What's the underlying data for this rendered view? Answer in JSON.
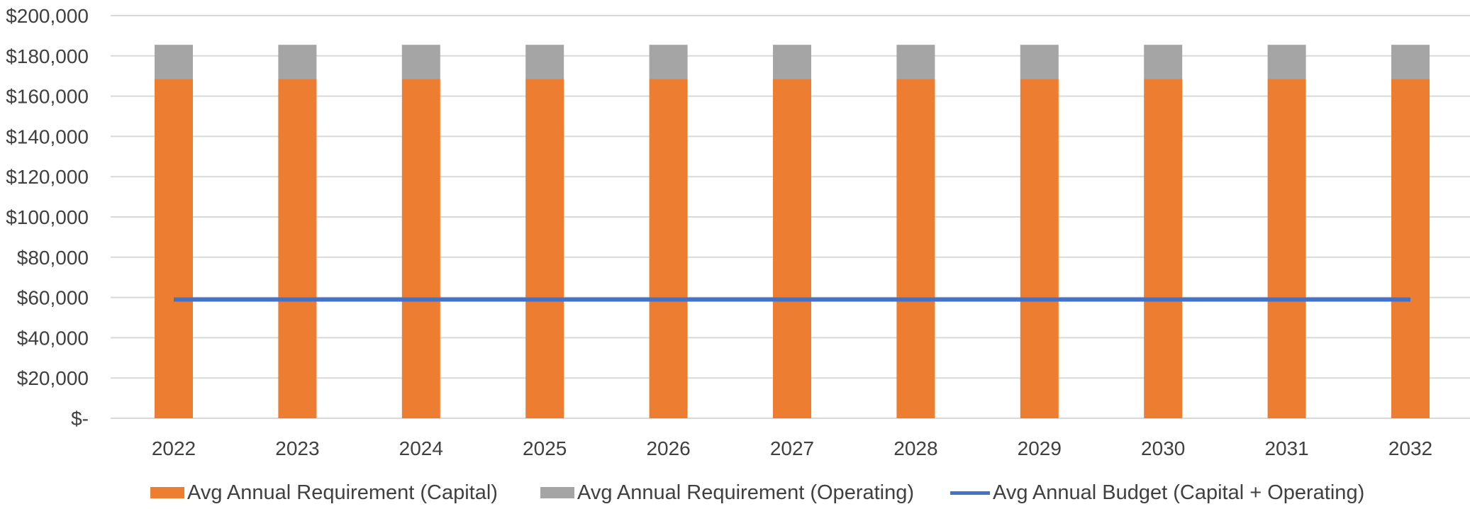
{
  "chart_data": {
    "type": "bar",
    "stacked": true,
    "categories": [
      "2022",
      "2023",
      "2024",
      "2025",
      "2026",
      "2027",
      "2028",
      "2029",
      "2030",
      "2031",
      "2032"
    ],
    "series": [
      {
        "name": "Avg Annual Requirement (Capital)",
        "type": "bar",
        "color": "#ED7D31",
        "values": [
          168500,
          168500,
          168500,
          168500,
          168500,
          168500,
          168500,
          168500,
          168500,
          168500,
          168500
        ]
      },
      {
        "name": "Avg Annual Requirement (Operating)",
        "type": "bar",
        "color": "#A5A5A5",
        "values": [
          17000,
          17000,
          17000,
          17000,
          17000,
          17000,
          17000,
          17000,
          17000,
          17000,
          17000
        ]
      },
      {
        "name": "Avg Annual Budget (Capital + Operating)",
        "type": "line",
        "color": "#4472C4",
        "values": [
          59000,
          59000,
          59000,
          59000,
          59000,
          59000,
          59000,
          59000,
          59000,
          59000,
          59000
        ]
      }
    ],
    "ylim": [
      0,
      200000
    ],
    "yticks": [
      0,
      20000,
      40000,
      60000,
      80000,
      100000,
      120000,
      140000,
      160000,
      180000,
      200000
    ],
    "ytick_labels": [
      "$-",
      "$20,000",
      "$40,000",
      "$60,000",
      "$80,000",
      "$100,000",
      "$120,000",
      "$140,000",
      "$160,000",
      "$180,000",
      "$200,000"
    ],
    "grid": true,
    "legend_position": "bottom",
    "title": "",
    "xlabel": "",
    "ylabel": ""
  },
  "legend": {
    "items": [
      {
        "label": "Avg Annual Requirement (Capital)",
        "color": "#ED7D31"
      },
      {
        "label": "Avg Annual Requirement (Operating)",
        "color": "#A5A5A5"
      },
      {
        "label": "Avg Annual Budget (Capital + Operating)",
        "color": "#4472C4"
      }
    ]
  },
  "colors": {
    "grid": "#D9D9D9",
    "axis": "#D9D9D9",
    "text": "#404040"
  }
}
